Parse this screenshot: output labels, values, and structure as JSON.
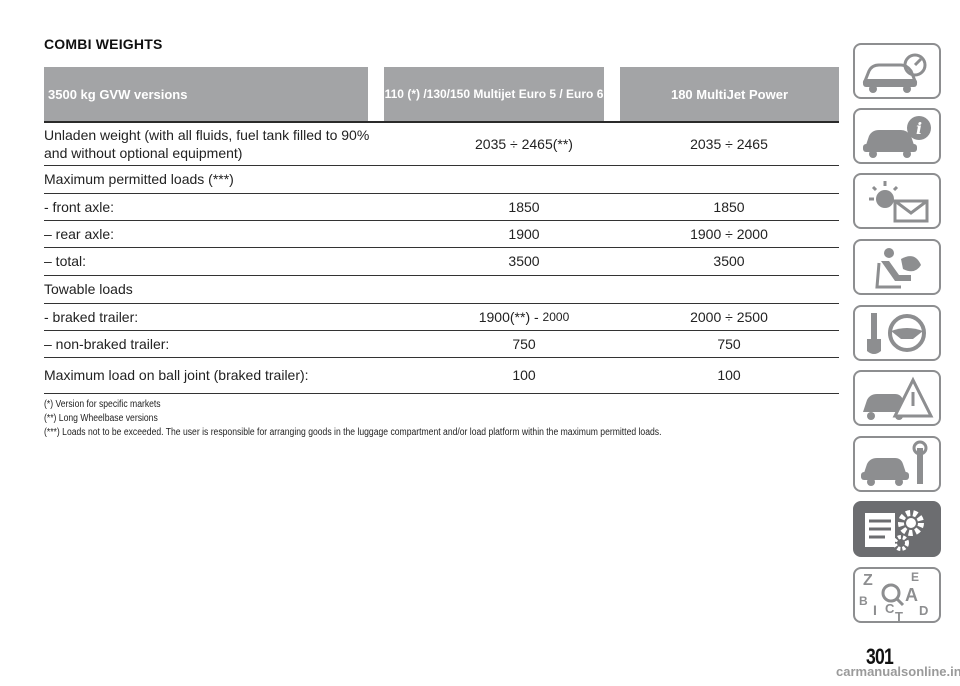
{
  "title": "COMBI WEIGHTS",
  "table": {
    "headers": [
      "3500 kg GVW versions",
      "110 (*) /130/150 Multijet Euro 5 / Euro 6",
      "180 MultiJet Power"
    ],
    "rows": [
      {
        "label": "Unladen weight (with all fluids, fuel tank filled to 90% and without optional equipment)",
        "v1": "2035 ÷ 2465(**)",
        "v2": "2035 ÷ 2465"
      },
      {
        "label": "Maximum permitted loads (***)",
        "v1": "",
        "v2": ""
      },
      {
        "label": "- front axle:",
        "v1": "1850",
        "v2": "1850"
      },
      {
        "label": "– rear axle:",
        "v1": "1900",
        "v2": "1900 ÷ 2000"
      },
      {
        "label": "– total:",
        "v1": "3500",
        "v2": "3500"
      },
      {
        "label": "Towable loads",
        "v1": "",
        "v2": ""
      },
      {
        "label": "- braked trailer:",
        "v1": "1900(**) - ",
        "v1_small": "2000",
        "v2": "2000 ÷ 2500"
      },
      {
        "label": "– non-braked trailer:",
        "v1": "750",
        "v2": "750"
      },
      {
        "label": "Maximum load on ball joint (braked trailer):",
        "v1": "100",
        "v2": "100"
      }
    ]
  },
  "notes": [
    "(*) Version for specific markets",
    "(**) Long Wheelbase versions",
    "(***) Loads not to be exceeded. The user is responsible for arranging goods in the luggage compartment and/or load platform within the maximum permitted loads."
  ],
  "sidebar": {
    "tabs": [
      {
        "icon": "car-dashboard-icon"
      },
      {
        "icon": "car-info-icon"
      },
      {
        "icon": "warning-light-message-icon"
      },
      {
        "icon": "seat-airbag-icon"
      },
      {
        "icon": "key-steering-wheel-icon"
      },
      {
        "icon": "car-warning-triangle-icon"
      },
      {
        "icon": "car-wrench-icon"
      },
      {
        "icon": "technical-data-gears-icon",
        "active": true
      },
      {
        "icon": "alphabetical-index-icon"
      }
    ],
    "index_letters": [
      "Z",
      "E",
      "B",
      "A",
      "I",
      "C",
      "D",
      "T"
    ]
  },
  "page_number": "301",
  "watermark": "carmanualsonline.info",
  "colors": {
    "header_bg": "#a3a4a6",
    "tab_border": "#8d8e90",
    "tab_active": "#6c6d70"
  }
}
